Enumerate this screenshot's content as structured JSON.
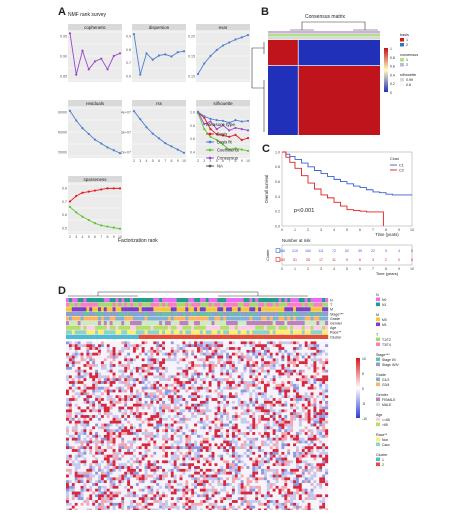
{
  "panels": {
    "A": {
      "letter": "A",
      "title": "NMF rank survey",
      "xlabel": "Factorization rank",
      "legend_title": "Measure type",
      "legend_items": [
        {
          "label": "Basis",
          "color": "#e41a1c"
        },
        {
          "label": "Basis fit",
          "color": "#4d7fd1"
        },
        {
          "label": "Coefficients",
          "color": "#5ec531"
        },
        {
          "label": "Consensus",
          "color": "#9a47c9"
        },
        {
          "label": "NA",
          "color": "#555555"
        }
      ],
      "chart_data": [
        {
          "type": "line",
          "title": "cophenetic",
          "x": [
            2,
            3,
            4,
            5,
            6,
            7,
            8,
            9,
            10
          ],
          "yticks": [
            "0.85",
            "0.90",
            "0.95"
          ],
          "ylim": [
            0.82,
            1.0
          ],
          "series": [
            {
              "name": "Consensus",
              "color": "#9a47c9",
              "values": [
                0.995,
                0.84,
                0.93,
                0.86,
                0.89,
                0.9,
                0.86,
                0.91,
                0.92
              ]
            }
          ]
        },
        {
          "type": "line",
          "title": "dispersion",
          "x": [
            2,
            3,
            4,
            5,
            6,
            7,
            8,
            9,
            10
          ],
          "yticks": [
            "0.6",
            "0.7",
            "0.8",
            "0.9"
          ],
          "ylim": [
            0.55,
            1.0
          ],
          "series": [
            {
              "name": "Consensus",
              "color": "#4d7fd1",
              "values": [
                0.98,
                0.6,
                0.8,
                0.74,
                0.78,
                0.79,
                0.77,
                0.81,
                0.82
              ]
            }
          ]
        },
        {
          "type": "line",
          "title": "evar",
          "x": [
            2,
            3,
            4,
            5,
            6,
            7,
            8,
            9,
            10
          ],
          "yticks": [
            "0.10",
            "0.15",
            "0.20"
          ],
          "ylim": [
            0.08,
            0.24
          ],
          "series": [
            {
              "name": "Basis",
              "color": "#4d7fd1",
              "values": [
                0.1,
                0.135,
                0.16,
                0.18,
                0.195,
                0.205,
                0.215,
                0.222,
                0.23
              ]
            }
          ]
        },
        {
          "type": "line",
          "title": "residuals",
          "x": [
            2,
            3,
            4,
            5,
            6,
            7,
            8,
            9,
            10
          ],
          "yticks": [
            "20000",
            "40000",
            "60000"
          ],
          "ylim": [
            15000,
            65000
          ],
          "series": [
            {
              "name": "Basis",
              "color": "#4d7fd1",
              "values": [
                62000,
                52000,
                44000,
                38000,
                32000,
                28000,
                24000,
                21000,
                18000
              ]
            }
          ]
        },
        {
          "type": "line",
          "title": "rss",
          "x": [
            2,
            3,
            4,
            5,
            6,
            7,
            8,
            9,
            10
          ],
          "yticks": [
            "2e+07",
            "3e+07",
            "4e+07"
          ],
          "ylim": [
            15000000.0,
            45000000.0
          ],
          "series": [
            {
              "name": "Basis",
              "color": "#4d7fd1",
              "values": [
                43000000.0,
                38000000.0,
                33000000.0,
                29000000.0,
                26000000.0,
                23000000.0,
                21000000.0,
                19000000.0,
                17000000.0
              ]
            }
          ]
        },
        {
          "type": "line",
          "title": "silhouette",
          "x": [
            2,
            3,
            4,
            5,
            6,
            7,
            8,
            9,
            10
          ],
          "yticks": [
            "0.4",
            "0.6",
            "0.8",
            "1.0"
          ],
          "ylim": [
            0.3,
            1.05
          ],
          "series": [
            {
              "name": "Basis",
              "color": "#e41a1c",
              "values": [
                0.98,
                0.9,
                0.72,
                0.64,
                0.62,
                0.6,
                0.63,
                0.55,
                0.58
              ]
            },
            {
              "name": "Coefficients",
              "color": "#5ec531",
              "values": [
                0.97,
                0.72,
                0.6,
                0.55,
                0.48,
                0.4,
                0.42,
                0.4,
                0.38
              ]
            },
            {
              "name": "Consensus",
              "color": "#9a47c9",
              "values": [
                0.99,
                0.8,
                0.84,
                0.72,
                0.78,
                0.7,
                0.74,
                0.72,
                0.7
              ]
            },
            {
              "name": "Basis fit",
              "color": "#4d7fd1",
              "values": [
                0.99,
                0.92,
                0.88,
                0.86,
                0.85,
                0.82,
                0.86,
                0.84,
                0.85
              ]
            }
          ]
        },
        {
          "type": "line",
          "title": "sparseness",
          "x": [
            2,
            3,
            4,
            5,
            6,
            7,
            8,
            9,
            10
          ],
          "yticks": [
            "0.5",
            "0.6",
            "0.7",
            "0.8"
          ],
          "ylim": [
            0.42,
            0.86
          ],
          "series": [
            {
              "name": "Basis",
              "color": "#e41a1c",
              "values": [
                0.7,
                0.75,
                0.78,
                0.79,
                0.8,
                0.81,
                0.82,
                0.82,
                0.82
              ]
            },
            {
              "name": "Coefficients",
              "color": "#5ec531",
              "values": [
                0.65,
                0.6,
                0.56,
                0.53,
                0.5,
                0.48,
                0.47,
                0.46,
                0.45
              ]
            }
          ]
        }
      ]
    },
    "B": {
      "letter": "B",
      "title": "Consensus matrix",
      "legend": [
        {
          "title": "basis",
          "items": [
            {
              "label": "1",
              "color": "#d7191c"
            },
            {
              "label": "2",
              "color": "#2c7bb6"
            }
          ]
        },
        {
          "title": "consensus",
          "items": [
            {
              "label": "1",
              "color": "#b2df8a"
            },
            {
              "label": "2",
              "color": "#cab2d6"
            }
          ]
        },
        {
          "title": "silhouette",
          "items": [
            {
              "label": "0.99",
              "color": "#d9d9d9"
            },
            {
              "label": "0.6",
              "color": "#f7f7f7"
            }
          ]
        }
      ],
      "colorbar_ticks": [
        "1",
        "0.8",
        "0.6",
        "0.4",
        "0.2",
        "0"
      ]
    },
    "C": {
      "letter": "C",
      "ylabel": "Overall survival",
      "xlabel": "Time (years)",
      "pvalue": "p<0.001",
      "legend_title": "Clust",
      "legend_items": [
        {
          "label": "C1",
          "color": "#3b5fd4"
        },
        {
          "label": "C2",
          "color": "#e02020"
        }
      ],
      "risk_title": "Number at risk",
      "risk_ylabel": "Cluster",
      "risk_x_title": "Time (years)",
      "chart_data": {
        "type": "line",
        "x_ticks": [
          "0",
          "1",
          "2",
          "3",
          "4",
          "5",
          "6",
          "7",
          "8",
          "9",
          "10"
        ],
        "y_ticks": [
          "0.0",
          "0.2",
          "0.4",
          "0.6",
          "0.8",
          "1.0"
        ],
        "xlim": [
          0,
          10
        ],
        "ylim": [
          0,
          1
        ],
        "series": [
          {
            "name": "C1",
            "color": "#3b5fd4",
            "x": [
              0,
              0.3,
              0.6,
              1,
              1.5,
              2,
              2.5,
              3,
              3.5,
              4,
              4.5,
              5,
              5.5,
              6,
              6.5,
              7,
              7.5,
              8,
              8.5,
              9,
              9.5,
              10
            ],
            "y": [
              1,
              0.97,
              0.94,
              0.9,
              0.85,
              0.8,
              0.75,
              0.71,
              0.67,
              0.63,
              0.6,
              0.57,
              0.54,
              0.52,
              0.49,
              0.46,
              0.45,
              0.43,
              0.42,
              0.42,
              0.42,
              0.42
            ]
          },
          {
            "name": "C2",
            "color": "#e02020",
            "x": [
              0,
              0.3,
              0.6,
              1,
              1.5,
              2,
              2.5,
              3,
              3.5,
              4,
              4.5,
              5,
              5.5,
              6,
              6.5,
              7,
              7.5,
              7.8
            ],
            "y": [
              1,
              0.93,
              0.86,
              0.78,
              0.68,
              0.58,
              0.5,
              0.42,
              0.38,
              0.32,
              0.27,
              0.22,
              0.21,
              0.2,
              0.19,
              0.19,
              0.19,
              0.0
            ]
          }
        ]
      },
      "risk_rows": [
        {
          "name": "C1",
          "color": "#3b5fd4",
          "values": [
            "286",
            "210",
            "160",
            "111",
            "72",
            "52",
            "39",
            "22",
            "9",
            "4",
            "0"
          ]
        },
        {
          "name": "C2",
          "color": "#e02020",
          "values": [
            "100",
            "51",
            "28",
            "17",
            "11",
            "9",
            "6",
            "3",
            "2",
            "0",
            "0"
          ]
        }
      ],
      "risk_x_ticks": [
        "0",
        "1",
        "2",
        "3",
        "4",
        "5",
        "6",
        "7",
        "8",
        "9",
        "10"
      ]
    },
    "D": {
      "letter": "D",
      "track_labels": [
        "N",
        "T",
        "M",
        "Stage***",
        "Grade",
        "Gender",
        "Age",
        "Race**",
        "Cluster"
      ],
      "colorbar_ticks": [
        "10",
        "5",
        "0",
        "-5",
        "-10"
      ],
      "legend": [
        {
          "title": "N",
          "items": [
            {
              "label": "N0",
              "color": "#e76bf3"
            },
            {
              "label": "N1",
              "color": "#1f9e89"
            }
          ]
        },
        {
          "title": "M",
          "items": [
            {
              "label": "M0",
              "color": "#f8c630"
            },
            {
              "label": "M1",
              "color": "#7b3fc6"
            }
          ]
        },
        {
          "title": "T",
          "items": [
            {
              "label": "T1/T2",
              "color": "#a6d96a"
            },
            {
              "label": "T3/T4",
              "color": "#fb7dc2"
            }
          ]
        },
        {
          "title": "Stage***",
          "items": [
            {
              "label": "Stage I/II",
              "color": "#66c2a5"
            },
            {
              "label": "Stage III/IV",
              "color": "#8da0cb"
            }
          ]
        },
        {
          "title": "Grade",
          "items": [
            {
              "label": "G1/2",
              "color": "#80b1d3"
            },
            {
              "label": "G3/4",
              "color": "#fdb462"
            }
          ]
        },
        {
          "title": "Gender",
          "items": [
            {
              "label": "FEMALE",
              "color": "#bc80bd"
            },
            {
              "label": "MALE",
              "color": "#ccebc5"
            }
          ]
        },
        {
          "title": "Age",
          "items": [
            {
              "label": "<=65",
              "color": "#fccde5"
            },
            {
              "label": ">65",
              "color": "#b3de69"
            }
          ]
        },
        {
          "title": "Race**",
          "items": [
            {
              "label": "Non",
              "color": "#ffed6f"
            },
            {
              "label": "Cauc",
              "color": "#8dd3c7"
            }
          ]
        },
        {
          "title": "Cluster",
          "items": [
            {
              "label": "1",
              "color": "#4dbbd5"
            },
            {
              "label": "2",
              "color": "#e64b35"
            }
          ]
        }
      ]
    }
  }
}
